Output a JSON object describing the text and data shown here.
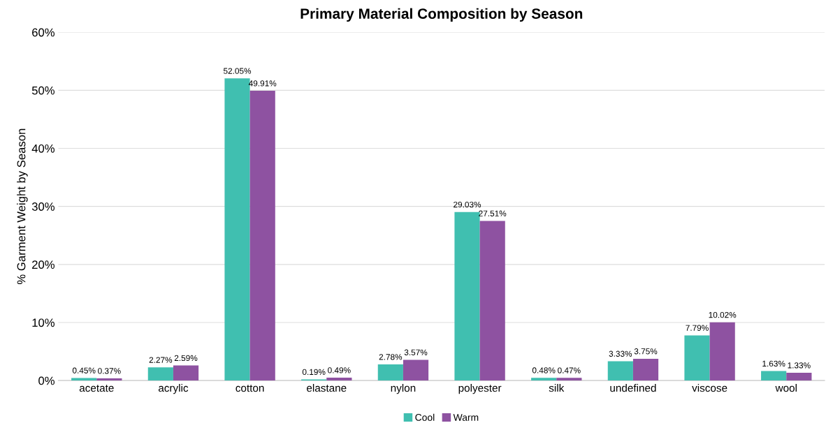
{
  "chart_data": {
    "type": "bar",
    "title": "Primary Material Composition by Season",
    "ylabel": "% Garment Weight by Season",
    "categories": [
      "acetate",
      "acrylic",
      "cotton",
      "elastane",
      "nylon",
      "polyester",
      "silk",
      "undefined",
      "viscose",
      "wool"
    ],
    "series": [
      {
        "name": "Cool",
        "color": "#40bfb0",
        "values": [
          0.45,
          2.27,
          52.05,
          0.19,
          2.78,
          29.03,
          0.48,
          3.33,
          7.79,
          1.63
        ],
        "value_labels": [
          "0.45%",
          "2.27%",
          "52.05%",
          "0.19%",
          "2.78%",
          "29.03%",
          "0.48%",
          "3.33%",
          "7.79%",
          "1.63%"
        ]
      },
      {
        "name": "Warm",
        "color": "#8e52a1",
        "values": [
          0.37,
          2.59,
          49.91,
          0.49,
          3.57,
          27.51,
          0.47,
          3.75,
          10.02,
          1.33
        ],
        "value_labels": [
          "0.37%",
          "2.59%",
          "49.91%",
          "0.49%",
          "3.57%",
          "27.51%",
          "0.47%",
          "3.75%",
          "10.02%",
          "1.33%"
        ]
      }
    ],
    "ylim": [
      0,
      60
    ],
    "yticks": [
      {
        "value": 0,
        "label": "0%"
      },
      {
        "value": 10,
        "label": "10%"
      },
      {
        "value": 20,
        "label": "20%"
      },
      {
        "value": 30,
        "label": "30%"
      },
      {
        "value": 40,
        "label": "40%"
      },
      {
        "value": 50,
        "label": "50%"
      },
      {
        "value": 60,
        "label": "60%"
      }
    ],
    "grid": "y",
    "legend": "bottom"
  }
}
